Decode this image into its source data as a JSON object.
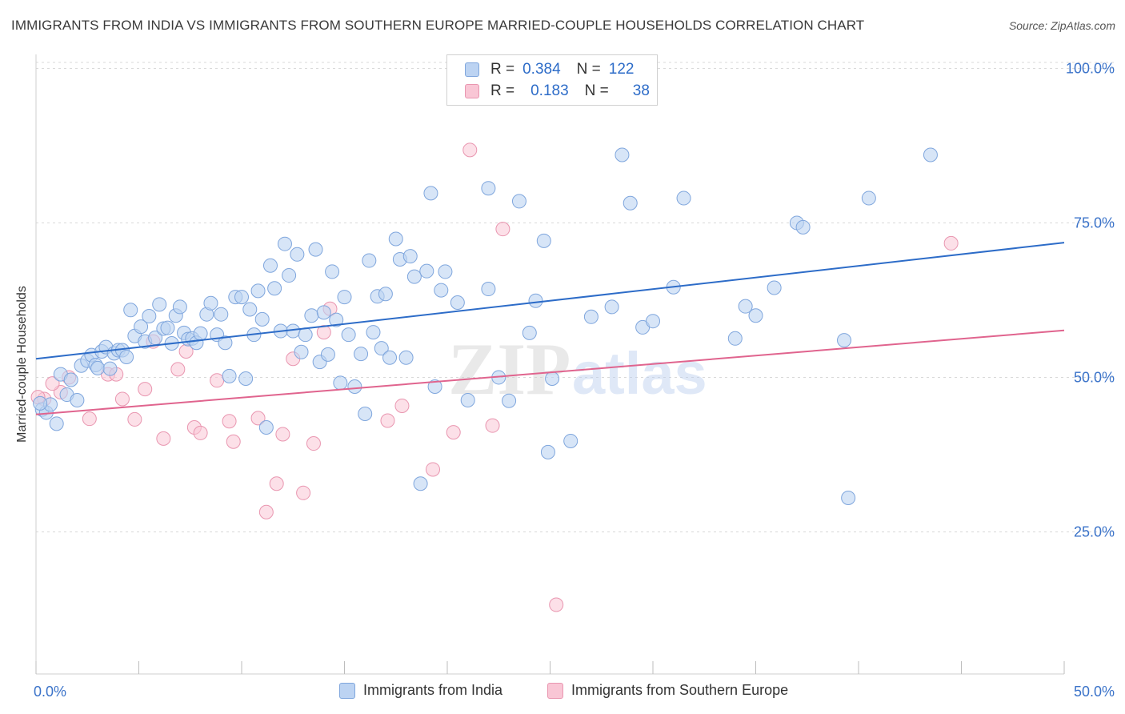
{
  "title": "IMMIGRANTS FROM INDIA VS IMMIGRANTS FROM SOUTHERN EUROPE MARRIED-COUPLE HOUSEHOLDS CORRELATION CHART",
  "source": "Source: ZipAtlas.com",
  "watermark": {
    "zip": "ZIP",
    "atlas": "atlas"
  },
  "legend": {
    "r_label": "R =",
    "n_label": "N =",
    "series": [
      {
        "r": "0.384",
        "n": "122"
      },
      {
        "r": "0.183",
        "n": "38"
      }
    ]
  },
  "colors": {
    "blue_fill": "#bcd3f2",
    "blue_edge": "#7fa6dd",
    "blue_line": "#2d6cc8",
    "pink_fill": "#f9c6d5",
    "pink_edge": "#e996b0",
    "pink_line": "#e0648e",
    "tick_label": "#3b73c9",
    "grid": "#d9d9d9"
  },
  "chart_data": {
    "type": "scatter",
    "title": "IMMIGRANTS FROM INDIA VS IMMIGRANTS FROM SOUTHERN EUROPE MARRIED-COUPLE HOUSEHOLDS CORRELATION CHART",
    "xlabel": "",
    "ylabel": "Married-couple Households",
    "xlim": [
      0,
      50
    ],
    "ylim": [
      2,
      102
    ],
    "x_tick_labels": [
      {
        "value": 0,
        "label": "0.0%"
      },
      {
        "value": 50,
        "label": "50.0%"
      }
    ],
    "y_tick_labels": [
      {
        "value": 100,
        "label": "100.0%"
      },
      {
        "value": 75,
        "label": "75.0%"
      },
      {
        "value": 50,
        "label": "50.0%"
      },
      {
        "value": 25,
        "label": "25.0%"
      }
    ],
    "x_minor_ticks": [
      0,
      5,
      10,
      15,
      20,
      25,
      30,
      35,
      40,
      45,
      50
    ],
    "series": [
      {
        "name": "Immigrants from India",
        "color": "#bcd3f2",
        "trend": {
          "x": [
            0,
            50
          ],
          "y": [
            53,
            71.8
          ]
        },
        "points": [
          [
            0.3,
            44.8
          ],
          [
            0.5,
            44.3
          ],
          [
            0.7,
            45.6
          ],
          [
            1.0,
            42.5
          ],
          [
            1.2,
            50.5
          ],
          [
            1.5,
            47.2
          ],
          [
            1.7,
            49.6
          ],
          [
            2.0,
            46.3
          ],
          [
            2.2,
            51.9
          ],
          [
            2.5,
            52.7
          ],
          [
            2.7,
            53.6
          ],
          [
            2.9,
            52.0
          ],
          [
            3.0,
            51.5
          ],
          [
            3.2,
            54.2
          ],
          [
            3.4,
            54.9
          ],
          [
            3.6,
            51.4
          ],
          [
            3.8,
            53.9
          ],
          [
            4.0,
            54.4
          ],
          [
            4.2,
            54.4
          ],
          [
            4.4,
            53.3
          ],
          [
            4.6,
            60.9
          ],
          [
            4.8,
            56.7
          ],
          [
            5.1,
            58.2
          ],
          [
            5.3,
            55.8
          ],
          [
            5.5,
            59.9
          ],
          [
            5.8,
            56.4
          ],
          [
            6.0,
            61.8
          ],
          [
            6.2,
            57.9
          ],
          [
            6.4,
            58.0
          ],
          [
            6.6,
            55.5
          ],
          [
            6.8,
            60.0
          ],
          [
            7.0,
            61.4
          ],
          [
            7.2,
            57.2
          ],
          [
            7.4,
            56.2
          ],
          [
            7.6,
            56.3
          ],
          [
            7.8,
            55.6
          ],
          [
            8.0,
            57.1
          ],
          [
            8.3,
            60.2
          ],
          [
            8.5,
            62.0
          ],
          [
            8.8,
            56.9
          ],
          [
            9.0,
            60.2
          ],
          [
            9.2,
            55.6
          ],
          [
            9.4,
            50.2
          ],
          [
            9.7,
            63.0
          ],
          [
            10.0,
            63.0
          ],
          [
            10.2,
            49.8
          ],
          [
            10.4,
            61.0
          ],
          [
            10.6,
            56.9
          ],
          [
            10.8,
            64.0
          ],
          [
            11.0,
            59.4
          ],
          [
            11.2,
            41.9
          ],
          [
            11.4,
            68.1
          ],
          [
            11.6,
            64.4
          ],
          [
            11.9,
            57.5
          ],
          [
            12.1,
            71.6
          ],
          [
            12.3,
            66.5
          ],
          [
            12.5,
            57.5
          ],
          [
            12.7,
            69.9
          ],
          [
            12.9,
            54.1
          ],
          [
            13.1,
            56.9
          ],
          [
            13.4,
            60.0
          ],
          [
            13.6,
            70.7
          ],
          [
            13.8,
            52.5
          ],
          [
            14.0,
            60.5
          ],
          [
            14.2,
            53.7
          ],
          [
            14.4,
            67.1
          ],
          [
            14.6,
            59.3
          ],
          [
            14.8,
            49.1
          ],
          [
            15.0,
            63.0
          ],
          [
            15.2,
            56.9
          ],
          [
            15.5,
            48.5
          ],
          [
            15.8,
            53.8
          ],
          [
            16.0,
            44.1
          ],
          [
            16.2,
            68.9
          ],
          [
            16.4,
            57.3
          ],
          [
            16.6,
            63.1
          ],
          [
            16.8,
            54.7
          ],
          [
            17.0,
            63.5
          ],
          [
            17.2,
            53.2
          ],
          [
            17.5,
            72.4
          ],
          [
            17.7,
            69.1
          ],
          [
            18.0,
            53.2
          ],
          [
            18.2,
            69.6
          ],
          [
            18.4,
            66.3
          ],
          [
            18.7,
            32.8
          ],
          [
            19.0,
            67.2
          ],
          [
            19.2,
            79.8
          ],
          [
            19.4,
            48.5
          ],
          [
            19.7,
            64.1
          ],
          [
            19.9,
            67.1
          ],
          [
            20.5,
            62.1
          ],
          [
            21.0,
            46.3
          ],
          [
            22.0,
            80.6
          ],
          [
            22.0,
            64.3
          ],
          [
            22.5,
            50.0
          ],
          [
            23.0,
            46.2
          ],
          [
            23.5,
            78.5
          ],
          [
            24.0,
            57.2
          ],
          [
            24.3,
            62.4
          ],
          [
            24.7,
            72.1
          ],
          [
            24.9,
            37.9
          ],
          [
            25.1,
            49.8
          ],
          [
            26.0,
            39.7
          ],
          [
            27.0,
            59.8
          ],
          [
            28.0,
            61.4
          ],
          [
            28.5,
            86.0
          ],
          [
            28.9,
            78.2
          ],
          [
            29.5,
            58.1
          ],
          [
            30.0,
            59.1
          ],
          [
            31.5,
            79.0
          ],
          [
            31.0,
            64.6
          ],
          [
            34.0,
            56.3
          ],
          [
            34.5,
            61.5
          ],
          [
            35.0,
            60.0
          ],
          [
            35.9,
            64.5
          ],
          [
            37.0,
            75.0
          ],
          [
            37.3,
            74.3
          ],
          [
            39.3,
            56.0
          ],
          [
            39.5,
            30.5
          ],
          [
            40.5,
            79.0
          ],
          [
            43.5,
            86.0
          ],
          [
            0.2,
            45.8
          ]
        ]
      },
      {
        "name": "Immigrants from Southern Europe",
        "color": "#f9c6d5",
        "trend": {
          "x": [
            0,
            50
          ],
          "y": [
            44,
            57.6
          ]
        },
        "points": [
          [
            0.4,
            46.5
          ],
          [
            1.2,
            47.6
          ],
          [
            1.6,
            50.0
          ],
          [
            2.6,
            43.3
          ],
          [
            3.5,
            50.5
          ],
          [
            3.9,
            50.5
          ],
          [
            4.2,
            46.5
          ],
          [
            4.8,
            43.2
          ],
          [
            5.3,
            48.1
          ],
          [
            5.7,
            55.8
          ],
          [
            6.2,
            40.1
          ],
          [
            6.9,
            51.3
          ],
          [
            7.3,
            54.2
          ],
          [
            7.7,
            41.9
          ],
          [
            8.0,
            41.0
          ],
          [
            8.8,
            49.5
          ],
          [
            9.4,
            42.9
          ],
          [
            9.6,
            39.6
          ],
          [
            10.8,
            43.4
          ],
          [
            11.2,
            28.2
          ],
          [
            11.7,
            32.8
          ],
          [
            12.0,
            40.8
          ],
          [
            12.5,
            53.0
          ],
          [
            13.0,
            31.3
          ],
          [
            13.5,
            39.3
          ],
          [
            14.0,
            57.3
          ],
          [
            14.3,
            61.1
          ],
          [
            17.1,
            43.0
          ],
          [
            17.8,
            45.4
          ],
          [
            19.3,
            35.1
          ],
          [
            20.3,
            41.1
          ],
          [
            21.1,
            86.8
          ],
          [
            22.2,
            42.2
          ],
          [
            22.7,
            74.0
          ],
          [
            25.3,
            13.2
          ],
          [
            44.5,
            71.7
          ],
          [
            0.8,
            49.0
          ],
          [
            0.1,
            46.8
          ]
        ]
      }
    ]
  },
  "bottom_legend": {
    "items": [
      "Immigrants from India",
      "Immigrants from Southern Europe"
    ]
  }
}
